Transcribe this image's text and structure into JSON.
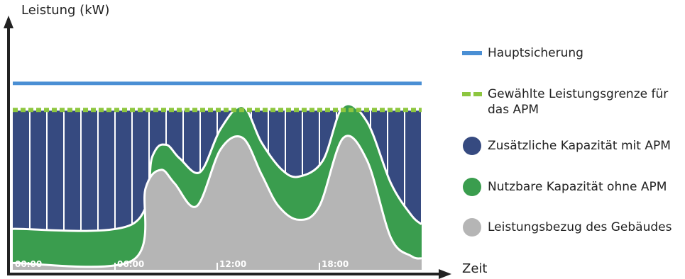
{
  "chart_data": {
    "type": "area",
    "xlabel": "Zeit",
    "ylabel": "Leistung (kW)",
    "x_ticks": [
      "00:00",
      "06:00",
      "12:00",
      "18:00"
    ],
    "x_range_hours": [
      0,
      24
    ],
    "y_range": [
      0,
      100
    ],
    "grid": "vertical stripes",
    "legend_position": "right",
    "main_fuse": {
      "name": "Hauptsicherung",
      "value": 82,
      "color": "#4a8fd4"
    },
    "power_limit": {
      "name": "Gewählte Leistungsgrenze für das APM",
      "value": 70,
      "color": "#8dc63f"
    },
    "series": [
      {
        "name": "Zusätzliche Kapazität mit APM",
        "color": "#364a80",
        "description_level": "limit",
        "values": [
          70,
          70
        ]
      },
      {
        "name": "Nutzbare Kapazität ohne APM",
        "color": "#3a9d4e",
        "x": [
          0,
          7,
          8.2,
          9,
          9.8,
          11,
          12.2,
          13.5,
          14.6,
          15.8,
          16.8,
          18.2,
          19.4,
          20.8,
          22.2,
          23.4,
          24
        ],
        "values": [
          18,
          20,
          50,
          55,
          49,
          43,
          62,
          72,
          56,
          44,
          41,
          48,
          72,
          65,
          38,
          24,
          20
        ]
      },
      {
        "name": "Leistungsbezug des Gebäudes",
        "color": "#b5b5b5",
        "x": [
          0,
          7,
          7.8,
          8.7,
          9.5,
          10.8,
          12.2,
          13.5,
          14.6,
          15.6,
          16.8,
          18,
          19.4,
          20.8,
          22.2,
          23.4,
          24
        ],
        "values": [
          3,
          4,
          36,
          44,
          38,
          28,
          53,
          58,
          42,
          28,
          22,
          28,
          58,
          48,
          14,
          6,
          5
        ]
      }
    ]
  },
  "legend": {
    "items": [
      {
        "label": "Hauptsicherung",
        "symbol": "line",
        "color": "#4a8fd4"
      },
      {
        "label": "Gewählte Leistungsgrenze für das APM",
        "symbol": "dash",
        "color": "#8dc63f"
      },
      {
        "label": "Zusätzliche Kapazität mit APM",
        "symbol": "dot",
        "color": "#364a80"
      },
      {
        "label": "Nutzbare Kapazität ohne APM",
        "symbol": "dot",
        "color": "#3a9d4e"
      },
      {
        "label": "Leistungsbezug des Gebäudes",
        "symbol": "dot",
        "color": "#b5b5b5"
      }
    ]
  }
}
